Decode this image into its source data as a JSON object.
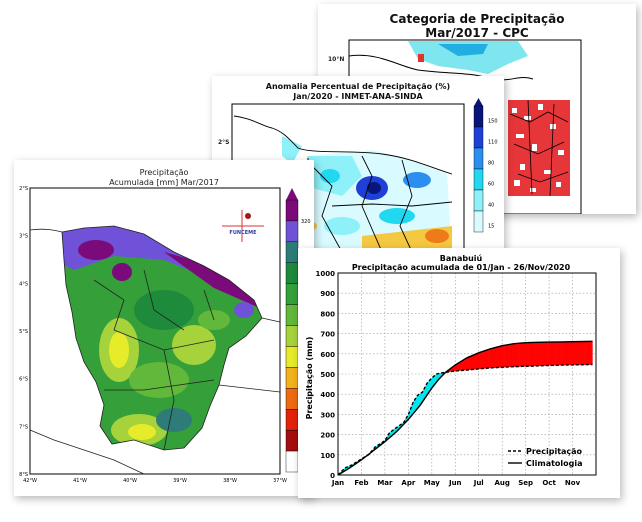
{
  "cpc_panel": {
    "title": "Categoria de Precipitação",
    "subtitle": "Mar/2017 - CPC",
    "lat_label": "10°N"
  },
  "anomaly_panel": {
    "title": "Anomalia Percentual de Precipitação (%)",
    "subtitle": "Jan/2020 - INMET-ANA-SINDA",
    "lat_label": "2°S",
    "colorbar_ticks": [
      "150",
      "110",
      "80",
      "60",
      "40",
      "15"
    ],
    "colorbar_colors": [
      "#08157a",
      "#1f3fd6",
      "#2c8ff0",
      "#22d8f0",
      "#8ef0f8",
      "#d9fbff"
    ]
  },
  "ceara_panel": {
    "title_line1": "Precipitação",
    "title_line2": "Acumulada [mm] Mar/2017",
    "lat_ticks": [
      "2°S",
      "3°S",
      "4°S",
      "5°S",
      "6°S",
      "7°S",
      "8°S"
    ],
    "lon_ticks": [
      "42°W",
      "41°W",
      "40°W",
      "39°W",
      "38°W",
      "37°W"
    ],
    "colorbar_ticks": [
      "320",
      "250"
    ],
    "colorbar_colors": [
      "#7b0a7a",
      "#6f52d8",
      "#2d7c78",
      "#1e8a3c",
      "#35a03a",
      "#62b83a",
      "#a6d23c",
      "#e6ec2a",
      "#f2b21a",
      "#ef6a12",
      "#e3230c",
      "#a50e0e",
      "#ffffff"
    ],
    "logo_text": "FUNCEME"
  },
  "chart_data": {
    "type": "area",
    "title": "Banabuiú",
    "subtitle": "Precipitação acumulada de 01/Jan - 26/Nov/2020",
    "ylabel": "Precipitação (mm)",
    "xlabel": "",
    "ylim": [
      0,
      1000
    ],
    "yticks": [
      0,
      100,
      200,
      300,
      400,
      500,
      600,
      700,
      800,
      900,
      1000
    ],
    "categories": [
      "Jan",
      "Feb",
      "Mar",
      "Apr",
      "May",
      "Jun",
      "Jul",
      "Aug",
      "Sep",
      "Oct",
      "Nov"
    ],
    "grid": true,
    "legend_position": "bottom-right",
    "series": [
      {
        "name": "Precipitação",
        "style": "dashed",
        "x": [
          0,
          0.3,
          0.6,
          1.0,
          1.3,
          1.6,
          2.0,
          2.2,
          2.5,
          2.8,
          3.0,
          3.2,
          3.4,
          3.6,
          3.8,
          4.0,
          4.2,
          4.4,
          4.6,
          4.8,
          5.0,
          5.5,
          6.0,
          6.5,
          7.0,
          7.5,
          8.0,
          8.5,
          9.0,
          9.5,
          10.0,
          10.5,
          10.85
        ],
        "values": [
          0,
          35,
          50,
          80,
          100,
          140,
          170,
          210,
          235,
          260,
          300,
          360,
          395,
          410,
          455,
          480,
          500,
          505,
          508,
          512,
          515,
          520,
          525,
          530,
          533,
          536,
          538,
          540,
          542,
          544,
          545,
          546,
          547
        ]
      },
      {
        "name": "Climatologia",
        "style": "solid",
        "x": [
          0,
          0.5,
          1.0,
          1.5,
          2.0,
          2.5,
          3.0,
          3.5,
          4.0,
          4.3,
          4.6,
          5.0,
          5.5,
          6.0,
          6.5,
          7.0,
          7.5,
          8.0,
          8.5,
          9.0,
          9.5,
          10.0,
          10.5,
          10.85
        ],
        "values": [
          0,
          35,
          75,
          120,
          165,
          215,
          275,
          345,
          430,
          475,
          510,
          545,
          580,
          605,
          625,
          640,
          650,
          655,
          657,
          658,
          659,
          660,
          661,
          662
        ]
      }
    ],
    "fill_above_climatology_color": "#00e5ee",
    "fill_below_climatology_color": "#ff0000"
  }
}
